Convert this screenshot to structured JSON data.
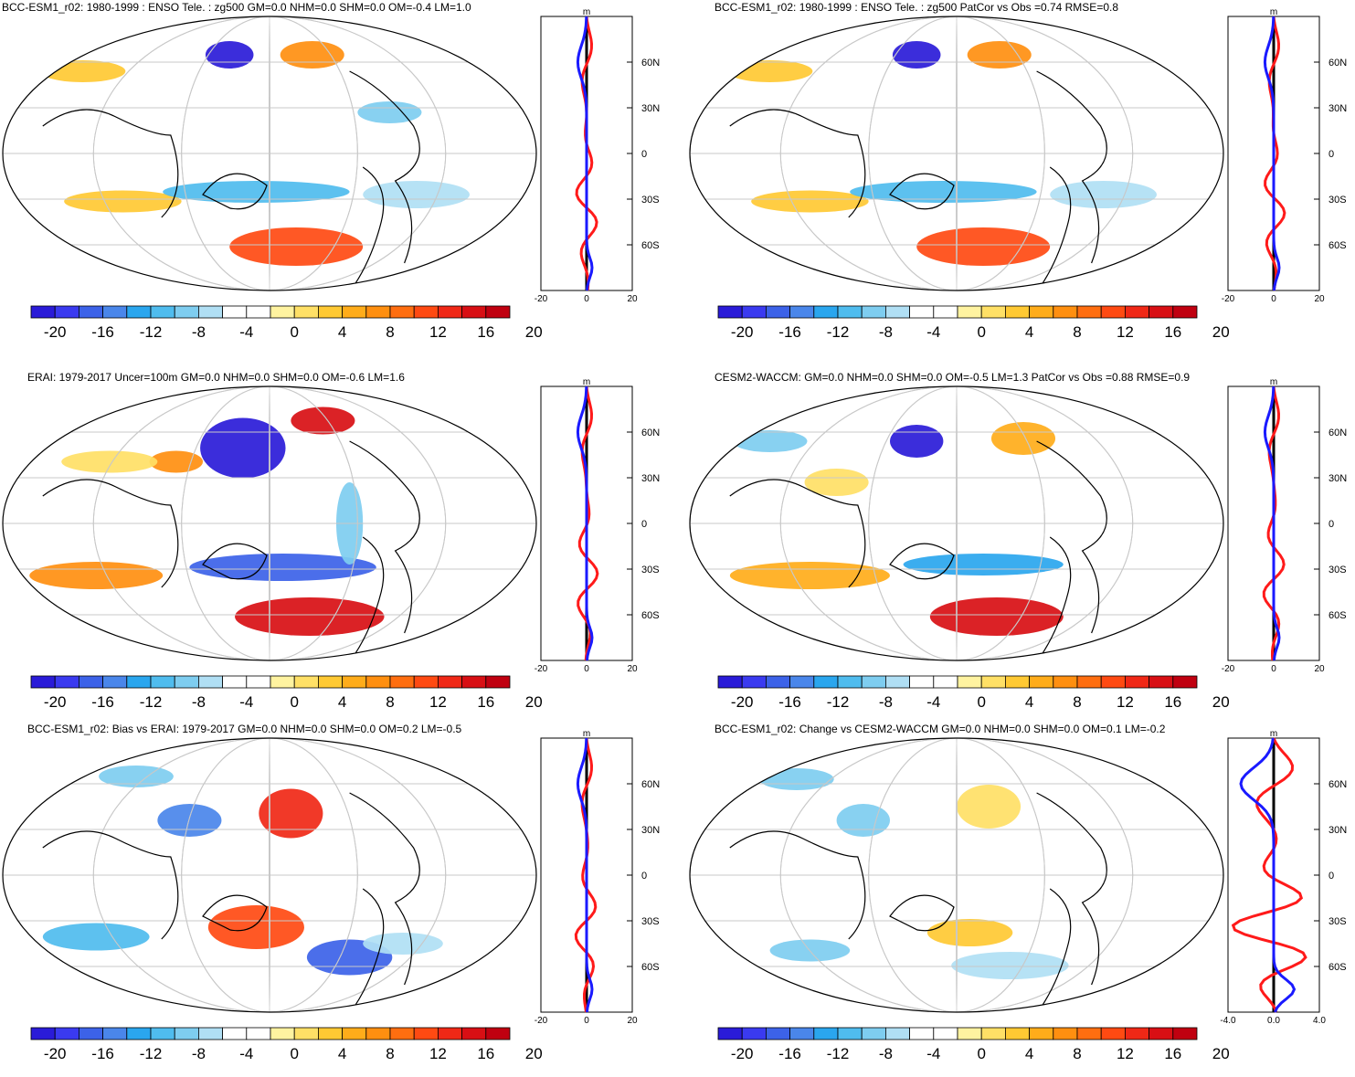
{
  "panels": [
    {
      "id": "p1",
      "title": "BCC-ESM1_r02: 1980-1999 : ENSO Tele. : zg500 GM=0.0 NHM=0.0 SHM=0.0 OM=-0.4 LM=1.0",
      "profile_xticks": [
        "-20",
        "0",
        "20"
      ],
      "profile_unit": "m"
    },
    {
      "id": "p2",
      "title": "BCC-ESM1_r02: 1980-1999 : ENSO Tele. : zg500 PatCor vs Obs =0.74 RMSE=0.8",
      "profile_xticks": [
        "-20",
        "0",
        "20"
      ],
      "profile_unit": "m"
    },
    {
      "id": "p3",
      "title": "ERAI: 1979-2017 Uncer=100m GM=0.0 NHM=0.0 SHM=0.0 OM=-0.6 LM=1.6",
      "profile_xticks": [
        "-20",
        "0",
        "20"
      ],
      "profile_unit": "m"
    },
    {
      "id": "p4",
      "title": "CESM2-WACCM: GM=0.0 NHM=0.0 SHM=0.0 OM=-0.5 LM=1.3 PatCor vs Obs =0.88 RMSE=0.9",
      "profile_xticks": [
        "-20",
        "0",
        "20"
      ],
      "profile_unit": "m"
    },
    {
      "id": "p5",
      "title": "BCC-ESM1_r02: Bias vs ERAI: 1979-2017 GM=0.0 NHM=0.0 SHM=0.0 OM=0.2 LM=-0.5",
      "profile_xticks": [
        "-20",
        "0",
        "20"
      ],
      "profile_unit": "m"
    },
    {
      "id": "p6",
      "title": "BCC-ESM1_r02: Change vs CESM2-WACCM GM=0.0 NHM=0.0 SHM=0.0 OM=0.1 LM=-0.2",
      "profile_xticks": [
        "-4.0",
        "0.0",
        "4.0"
      ],
      "profile_unit": "m"
    }
  ],
  "lat_labels": [
    "60N",
    "30N",
    "0",
    "30S",
    "60S"
  ],
  "colorbar": {
    "labels": [
      "-20",
      "-16",
      "-12",
      "-8",
      "-4",
      "0",
      "4",
      "8",
      "12",
      "16",
      "20"
    ],
    "colors": [
      "#2a1bd8",
      "#3a3af0",
      "#3c62e8",
      "#4a86ea",
      "#2aa6ee",
      "#4fbcee",
      "#7ecdf0",
      "#b0dff4",
      "#ffffff",
      "#ffffff",
      "#fff3a0",
      "#ffe066",
      "#ffc933",
      "#ffac1a",
      "#ff8f10",
      "#ff6e10",
      "#ff4a12",
      "#f02816",
      "#d80f14",
      "#c00010"
    ]
  },
  "profile_colors": {
    "a": "#ff1a1a",
    "b": "#1a1aff",
    "c": "#000000"
  }
}
